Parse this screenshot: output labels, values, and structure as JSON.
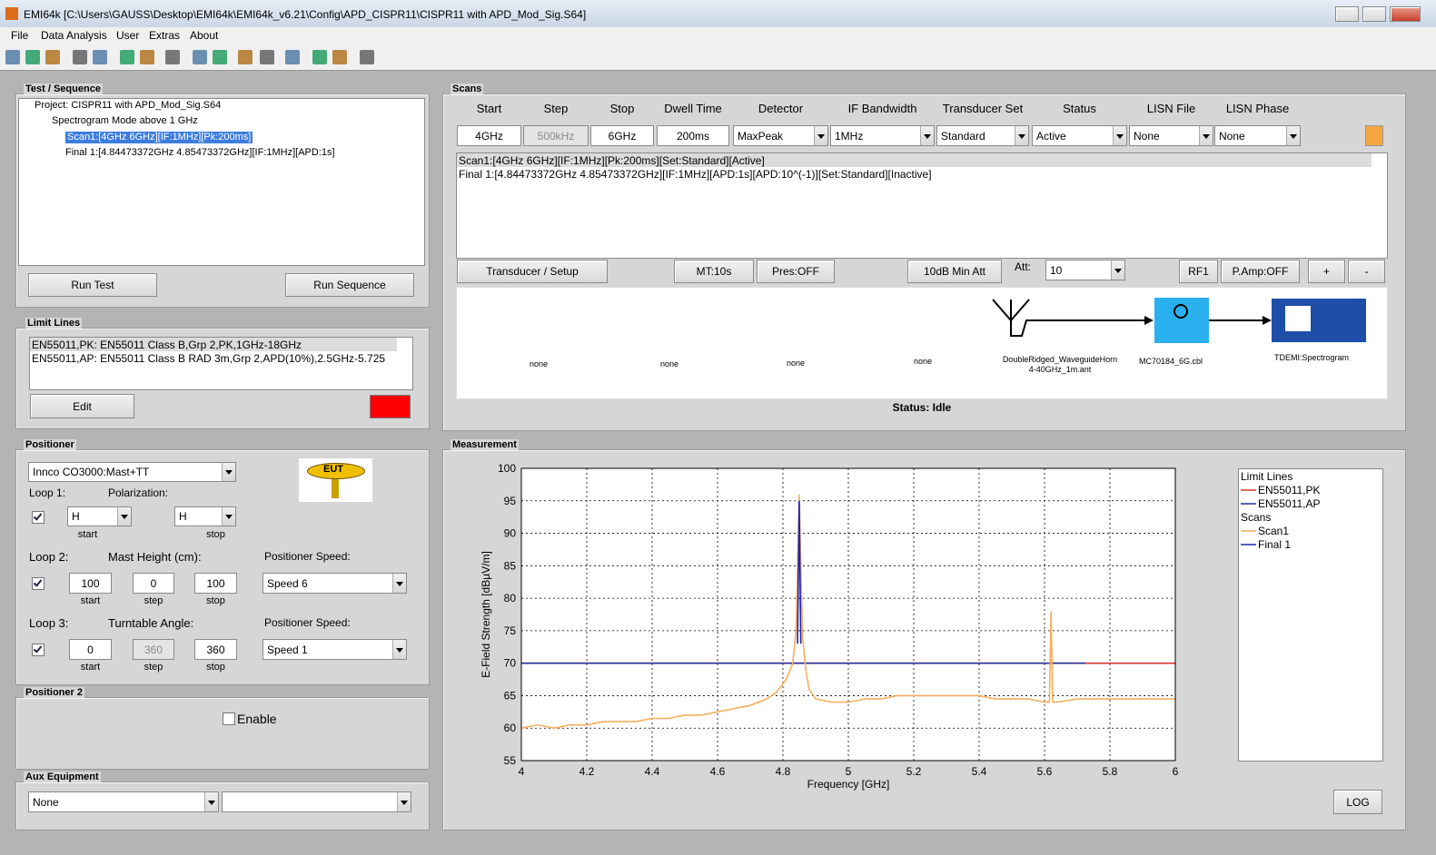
{
  "window": {
    "title": "EMI64k [C:\\Users\\GAUSS\\Desktop\\EMI64k\\EMI64k_v6.21\\Config\\APD_CISPR11\\CISPR11 with APD_Mod_Sig.S64]"
  },
  "menu": [
    "File",
    "Data Analysis",
    "User",
    "Extras",
    "About"
  ],
  "test_sequence": {
    "title": "Test / Sequence",
    "tree": [
      "Project: CISPR11 with APD_Mod_Sig.S64",
      "Spectrogram Mode above 1 GHz",
      "Scan1:[4GHz 6GHz][IF:1MHz][Pk:200ms]",
      "Final 1:[4.84473372GHz 4.85473372GHz][IF:1MHz][APD:1s]"
    ],
    "buttons": [
      "Run Test",
      "Run Sequence"
    ]
  },
  "limit_lines": {
    "title": "Limit Lines",
    "items": [
      "EN55011,PK: EN55011 Class B,Grp 2,PK,1GHz-18GHz",
      "EN55011,AP: EN55011 Class B RAD 3m,Grp 2,APD(10%),2.5GHz-5.725"
    ],
    "edit": "Edit"
  },
  "positioner": {
    "title": "Positioner",
    "device": "Innco CO3000:Mast+TT",
    "eut": "EUT",
    "loops": [
      {
        "label": "Loop 1:",
        "parameter": "Polarization:",
        "start": "H",
        "stop": "H",
        "start_caption": "start",
        "stop_caption": "stop"
      },
      {
        "label": "Loop 2:",
        "parameter": "Mast Height (cm):",
        "start": 100,
        "step": 0,
        "stop": 100,
        "start_caption": "start",
        "step_caption": "step",
        "stop_caption": "stop",
        "speed_label": "Positioner Speed:",
        "speed": "Speed 6"
      },
      {
        "label": "Loop 3:",
        "parameter": "Turntable Angle:",
        "start": 0,
        "step": 360,
        "stop": 360,
        "start_caption": "start",
        "step_caption": "step",
        "stop_caption": "stop",
        "speed_label": "Positioner Speed:",
        "speed": "Speed 1"
      }
    ]
  },
  "positioner2": {
    "title": "Positioner 2",
    "enable": "Enable"
  },
  "aux_equipment": {
    "title": "Aux Equipment",
    "device": "None"
  },
  "scans": {
    "title": "Scans",
    "headers": [
      "Start",
      "Step",
      "Stop",
      "Dwell Time",
      "Detector",
      "IF Bandwidth",
      "Transducer Set",
      "Status",
      "LISN File",
      "LISN Phase"
    ],
    "values": [
      "4GHz",
      "500kHz",
      "6GHz",
      "200ms",
      "MaxPeak",
      "1MHz",
      "Standard",
      "Active",
      "None",
      "None"
    ],
    "list": [
      "Scan1:[4GHz 6GHz][IF:1MHz][Pk:200ms][Set:Standard][Active]",
      "Final 1:[4.84473372GHz 4.85473372GHz][IF:1MHz][APD:1s][APD:10^(-1)][Set:Standard][Inactive]"
    ],
    "buttons": [
      "Transducer / Setup",
      "MT:10s",
      "Pres:OFF",
      "10dB Min Att"
    ],
    "att_label": "Att:",
    "att": 10,
    "buttons2": [
      "RF1",
      "P.Amp:OFF",
      "+",
      "-"
    ],
    "chain": [
      "none",
      "none",
      "none",
      "none",
      "DoubleRidged_WaveguideHorn 4-40GHz_1m.ant",
      "MC70184_6G.cbl",
      "TDEMI:Spectrogram"
    ],
    "status": "Status: Idle"
  },
  "measurement": {
    "title": "Measurement",
    "log_button": "LOG"
  },
  "chart_data": {
    "type": "line",
    "xlabel": "Frequency [GHz]",
    "ylabel": "E-Field Strength [dBµV/m]",
    "xlim": [
      4,
      6
    ],
    "xticks": [
      4,
      4.2,
      4.4,
      4.6,
      4.8,
      5,
      5.2,
      5.4,
      5.6,
      5.8,
      6
    ],
    "ylim": [
      55,
      100
    ],
    "yticks": [
      55,
      60,
      65,
      70,
      75,
      80,
      85,
      90,
      95,
      100
    ],
    "grid": true,
    "legend_groups": [
      "Limit Lines",
      "Scans"
    ],
    "series": [
      {
        "name": "EN55011,PK",
        "color": "#d23a2a",
        "x": [
          4,
          6
        ],
        "values": [
          70,
          70
        ]
      },
      {
        "name": "EN55011,AP",
        "color": "#2b2f9e",
        "x": [
          4,
          5.725
        ],
        "values": [
          70,
          70
        ]
      },
      {
        "name": "Scan1",
        "color": "#f4ae5e",
        "x": [
          4,
          4.05,
          4.1,
          4.15,
          4.2,
          4.25,
          4.3,
          4.35,
          4.4,
          4.45,
          4.5,
          4.55,
          4.6,
          4.65,
          4.7,
          4.75,
          4.78,
          4.81,
          4.83,
          4.84,
          4.845,
          4.85,
          4.855,
          4.86,
          4.87,
          4.88,
          4.9,
          4.95,
          5,
          5.05,
          5.1,
          5.15,
          5.2,
          5.25,
          5.3,
          5.35,
          5.4,
          5.45,
          5.5,
          5.55,
          5.6,
          5.615,
          5.62,
          5.625,
          5.64,
          5.7,
          5.75,
          5.8,
          5.85,
          5.9,
          5.95,
          6
        ],
        "values": [
          60,
          60.5,
          60,
          60.5,
          60.5,
          61,
          61,
          61,
          61.5,
          61.5,
          62,
          62,
          62.5,
          63,
          63.5,
          64.5,
          65.5,
          67.5,
          70,
          75,
          85,
          96,
          84,
          74,
          69,
          66,
          64.5,
          64,
          64,
          64.5,
          64.5,
          65,
          65,
          65,
          65,
          65,
          65,
          64.5,
          64.5,
          64.5,
          64,
          64,
          78,
          64,
          64,
          64.5,
          64.5,
          64.5,
          64.5,
          64.5,
          64.5,
          64.5
        ]
      },
      {
        "name": "Final 1",
        "color": "#2424a8",
        "x": [
          4.8447,
          4.8497,
          4.8547
        ],
        "values": [
          73,
          95,
          73
        ]
      }
    ]
  }
}
